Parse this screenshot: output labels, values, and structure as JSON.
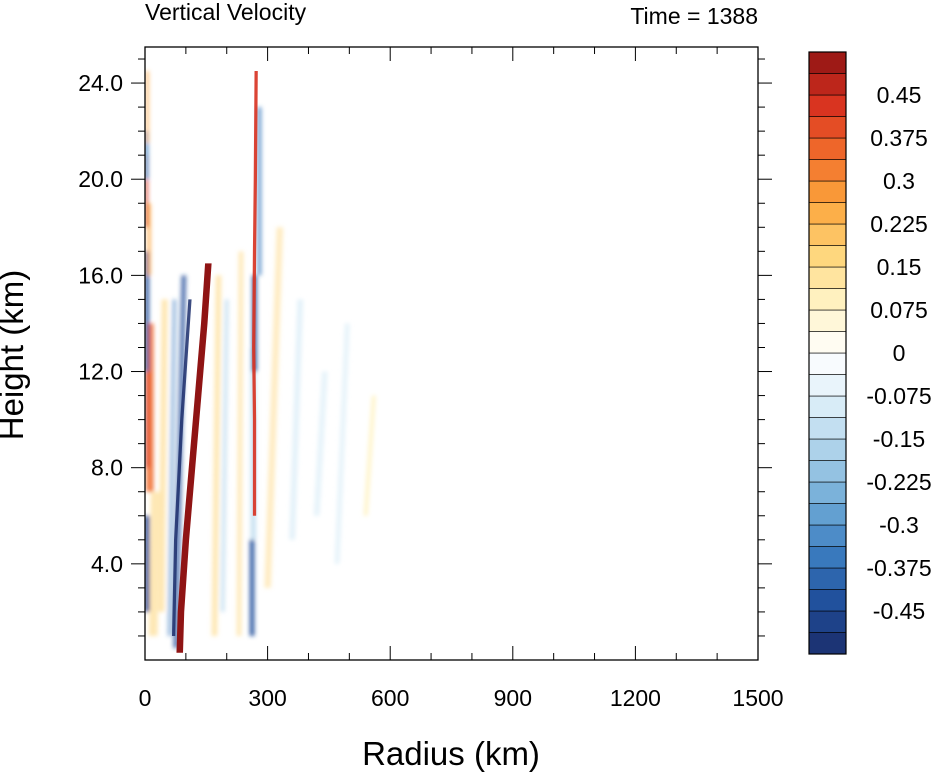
{
  "chart_data": {
    "type": "heatmap",
    "title": "Vertical Velocity",
    "time_label": "Time = 1388",
    "xlabel": "Radius (km)",
    "ylabel": "Height (km)",
    "xlim": [
      0,
      1500
    ],
    "ylim": [
      0,
      25.5
    ],
    "x_ticks": [
      "0",
      "300",
      "600",
      "900",
      "1200",
      "1500"
    ],
    "x_tick_values": [
      0,
      300,
      600,
      900,
      1200,
      1500
    ],
    "y_ticks": [
      "4.0",
      "8.0",
      "12.0",
      "16.0",
      "20.0",
      "24.0"
    ],
    "y_tick_values": [
      4,
      8,
      12,
      16,
      20,
      24
    ],
    "colorbar": {
      "labels": [
        "0.45",
        "0.375",
        "0.3",
        "0.225",
        "0.15",
        "0.075",
        "0",
        "-0.075",
        "-0.15",
        "-0.225",
        "-0.3",
        "-0.375",
        "-0.45"
      ],
      "label_values": [
        0.45,
        0.375,
        0.3,
        0.225,
        0.15,
        0.075,
        0,
        -0.075,
        -0.15,
        -0.225,
        -0.3,
        -0.375,
        -0.45
      ],
      "range": [
        -0.525,
        0.525
      ],
      "colors": [
        "#1b2d6b",
        "#1f4e9a",
        "#3b7cc0",
        "#6eaad6",
        "#a9d0e9",
        "#dceef8",
        "#ffffff",
        "#fff3c4",
        "#fed579",
        "#fca43c",
        "#f06a2b",
        "#d7301f",
        "#8f1414"
      ]
    },
    "features": [
      {
        "kind": "updraft-core",
        "sign": "positive",
        "radius_km": [
          85,
          160
        ],
        "height_km": [
          0.3,
          16.5
        ]
      },
      {
        "kind": "downdraft-band",
        "sign": "negative",
        "radius_km": [
          0,
          35
        ],
        "height_km": [
          1,
          22
        ]
      },
      {
        "kind": "downdraft-band",
        "sign": "negative",
        "radius_km": [
          250,
          300
        ],
        "height_km": [
          1,
          23
        ]
      },
      {
        "kind": "outer-band",
        "sign": "positive",
        "radius_km": [
          250,
          290
        ],
        "height_km": [
          6,
          24.5
        ]
      },
      {
        "kind": "weak-perturbations",
        "sign": "mixed",
        "radius_km": [
          300,
          580
        ],
        "height_km": [
          0.5,
          21
        ]
      }
    ]
  }
}
